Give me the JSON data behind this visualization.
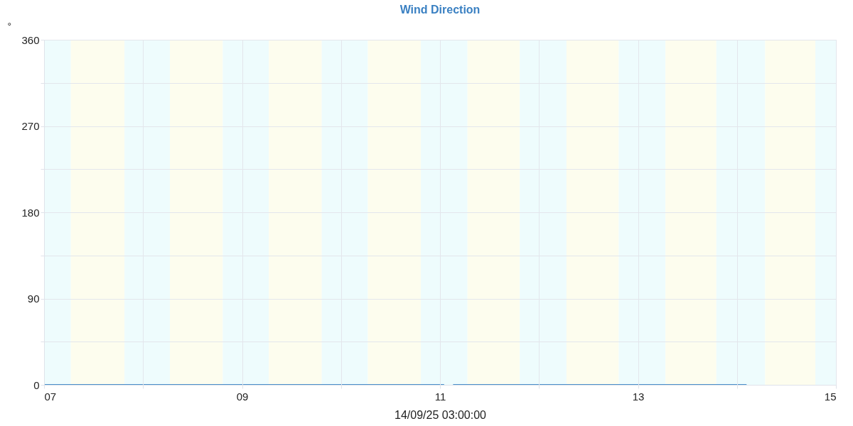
{
  "chart_data": {
    "type": "line",
    "title": "Wind Direction",
    "xlabel": "14/09/25 03:00:00",
    "ylabel": "°",
    "series": [
      {
        "color": "#4a8fcb",
        "x": [
          "--09-07T00:00",
          "--09-11T01:00",
          "--09-11T02:00",
          "--09-11T03:10",
          "--09-14T02:20"
        ],
        "values": [
          0,
          0,
          null,
          0,
          0
        ]
      }
    ],
    "xlim": [
      "--09-07",
      "--09-15"
    ],
    "xticks": [
      {
        "value": "--09-07",
        "label": "07"
      },
      {
        "value": "--09-08",
        "label": null
      },
      {
        "value": "--09-09",
        "label": "09"
      },
      {
        "value": "--09-10",
        "label": null
      },
      {
        "value": "--09-11",
        "label": "11"
      },
      {
        "value": "--09-12",
        "label": null
      },
      {
        "value": "--09-13",
        "label": "13"
      },
      {
        "value": "--09-14",
        "label": null
      },
      {
        "value": "--09-15",
        "label": "15"
      }
    ],
    "ylim": [
      0,
      360
    ],
    "yticks": [
      0,
      {
        "value": 45,
        "label": null
      },
      90,
      {
        "value": 135,
        "label": null
      },
      180,
      {
        "value": 225,
        "label": null
      },
      270,
      {
        "value": 315,
        "label": null
      },
      360
    ],
    "grid": true,
    "marker": "none",
    "line_style": "solid",
    "bands": [
      {
        "axis": "x",
        "from": "--09-07T00:00",
        "to": "--09-07T06:30",
        "color": "#eefcfd"
      },
      {
        "axis": "x",
        "from": "--09-07T06:30",
        "to": "--09-07T19:30",
        "color": "#fdfdee"
      },
      {
        "axis": "x",
        "from": "--09-07T19:30",
        "to": "--09-08T06:30",
        "color": "#eefcfd"
      },
      {
        "axis": "x",
        "from": "--09-08T06:30",
        "to": "--09-08T19:20",
        "color": "#fdfdee"
      },
      {
        "axis": "x",
        "from": "--09-08T19:20",
        "to": "--09-09T06:30",
        "color": "#eefcfd"
      },
      {
        "axis": "x",
        "from": "--09-09T06:30",
        "to": "--09-09T19:20",
        "color": "#fdfdee"
      },
      {
        "axis": "x",
        "from": "--09-09T19:20",
        "to": "--09-10T06:30",
        "color": "#eefcfd"
      },
      {
        "axis": "x",
        "from": "--09-10T06:30",
        "to": "--09-10T19:20",
        "color": "#fdfdee"
      },
      {
        "axis": "x",
        "from": "--09-10T19:20",
        "to": "--09-11T06:40",
        "color": "#eefcfd"
      },
      {
        "axis": "x",
        "from": "--09-11T06:40",
        "to": "--09-11T19:20",
        "color": "#fdfdee"
      },
      {
        "axis": "x",
        "from": "--09-11T19:20",
        "to": "--09-12T06:40",
        "color": "#eefcfd"
      },
      {
        "axis": "x",
        "from": "--09-12T06:40",
        "to": "--09-12T19:20",
        "color": "#fdfdee"
      },
      {
        "axis": "x",
        "from": "--09-12T19:20",
        "to": "--09-13T06:40",
        "color": "#eefcfd"
      },
      {
        "axis": "x",
        "from": "--09-13T06:40",
        "to": "--09-13T19:00",
        "color": "#fdfdee"
      },
      {
        "axis": "x",
        "from": "--09-13T19:00",
        "to": "--09-14T06:50",
        "color": "#eefcfd"
      },
      {
        "axis": "x",
        "from": "--09-14T06:50",
        "to": "--09-14T19:00",
        "color": "#fdfdee"
      },
      {
        "axis": "x",
        "from": "--09-14T19:00",
        "to": "--09-15T00:00",
        "color": "#eefcfd"
      }
    ]
  }
}
